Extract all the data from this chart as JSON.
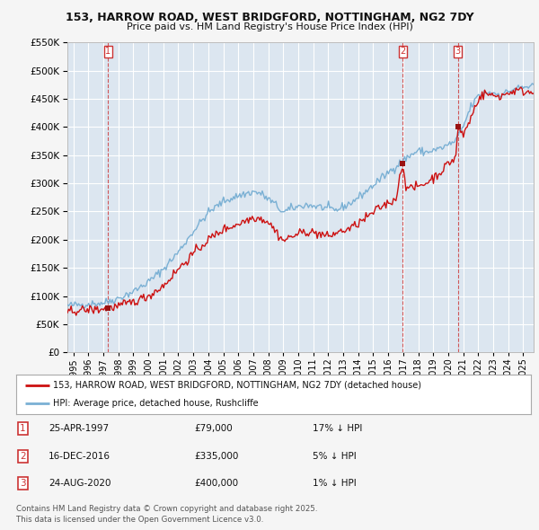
{
  "title1": "153, HARROW ROAD, WEST BRIDGFORD, NOTTINGHAM, NG2 7DY",
  "title2": "Price paid vs. HM Land Registry's House Price Index (HPI)",
  "background_color": "#f5f5f5",
  "plot_bg": "#dce6f0",
  "grid_color": "#ffffff",
  "sale1": {
    "date": 1997.32,
    "price": 79000,
    "label": "1",
    "hpi_pct": "17% ↓ HPI",
    "date_str": "25-APR-1997",
    "price_str": "£79,000"
  },
  "sale2": {
    "date": 2016.96,
    "price": 335000,
    "label": "2",
    "hpi_pct": "5% ↓ HPI",
    "date_str": "16-DEC-2016",
    "price_str": "£335,000"
  },
  "sale3": {
    "date": 2020.65,
    "price": 400000,
    "label": "3",
    "hpi_pct": "1% ↓ HPI",
    "date_str": "24-AUG-2020",
    "price_str": "£400,000"
  },
  "legend_label_red": "153, HARROW ROAD, WEST BRIDGFORD, NOTTINGHAM, NG2 7DY (detached house)",
  "legend_label_blue": "HPI: Average price, detached house, Rushcliffe",
  "footer": "Contains HM Land Registry data © Crown copyright and database right 2025.\nThis data is licensed under the Open Government Licence v3.0.",
  "ylim": [
    0,
    550000
  ],
  "xlim_start": 1994.6,
  "xlim_end": 2025.7,
  "yticks": [
    0,
    50000,
    100000,
    150000,
    200000,
    250000,
    300000,
    350000,
    400000,
    450000,
    500000,
    550000
  ],
  "xticks": [
    1995,
    1996,
    1997,
    1998,
    1999,
    2000,
    2001,
    2002,
    2003,
    2004,
    2005,
    2006,
    2007,
    2008,
    2009,
    2010,
    2011,
    2012,
    2013,
    2014,
    2015,
    2016,
    2017,
    2018,
    2019,
    2020,
    2021,
    2022,
    2023,
    2024,
    2025
  ],
  "hpi_color": "#7ab0d4",
  "prop_color": "#cc1111",
  "vline_color": "#cc3333",
  "marker_color": "#991111"
}
